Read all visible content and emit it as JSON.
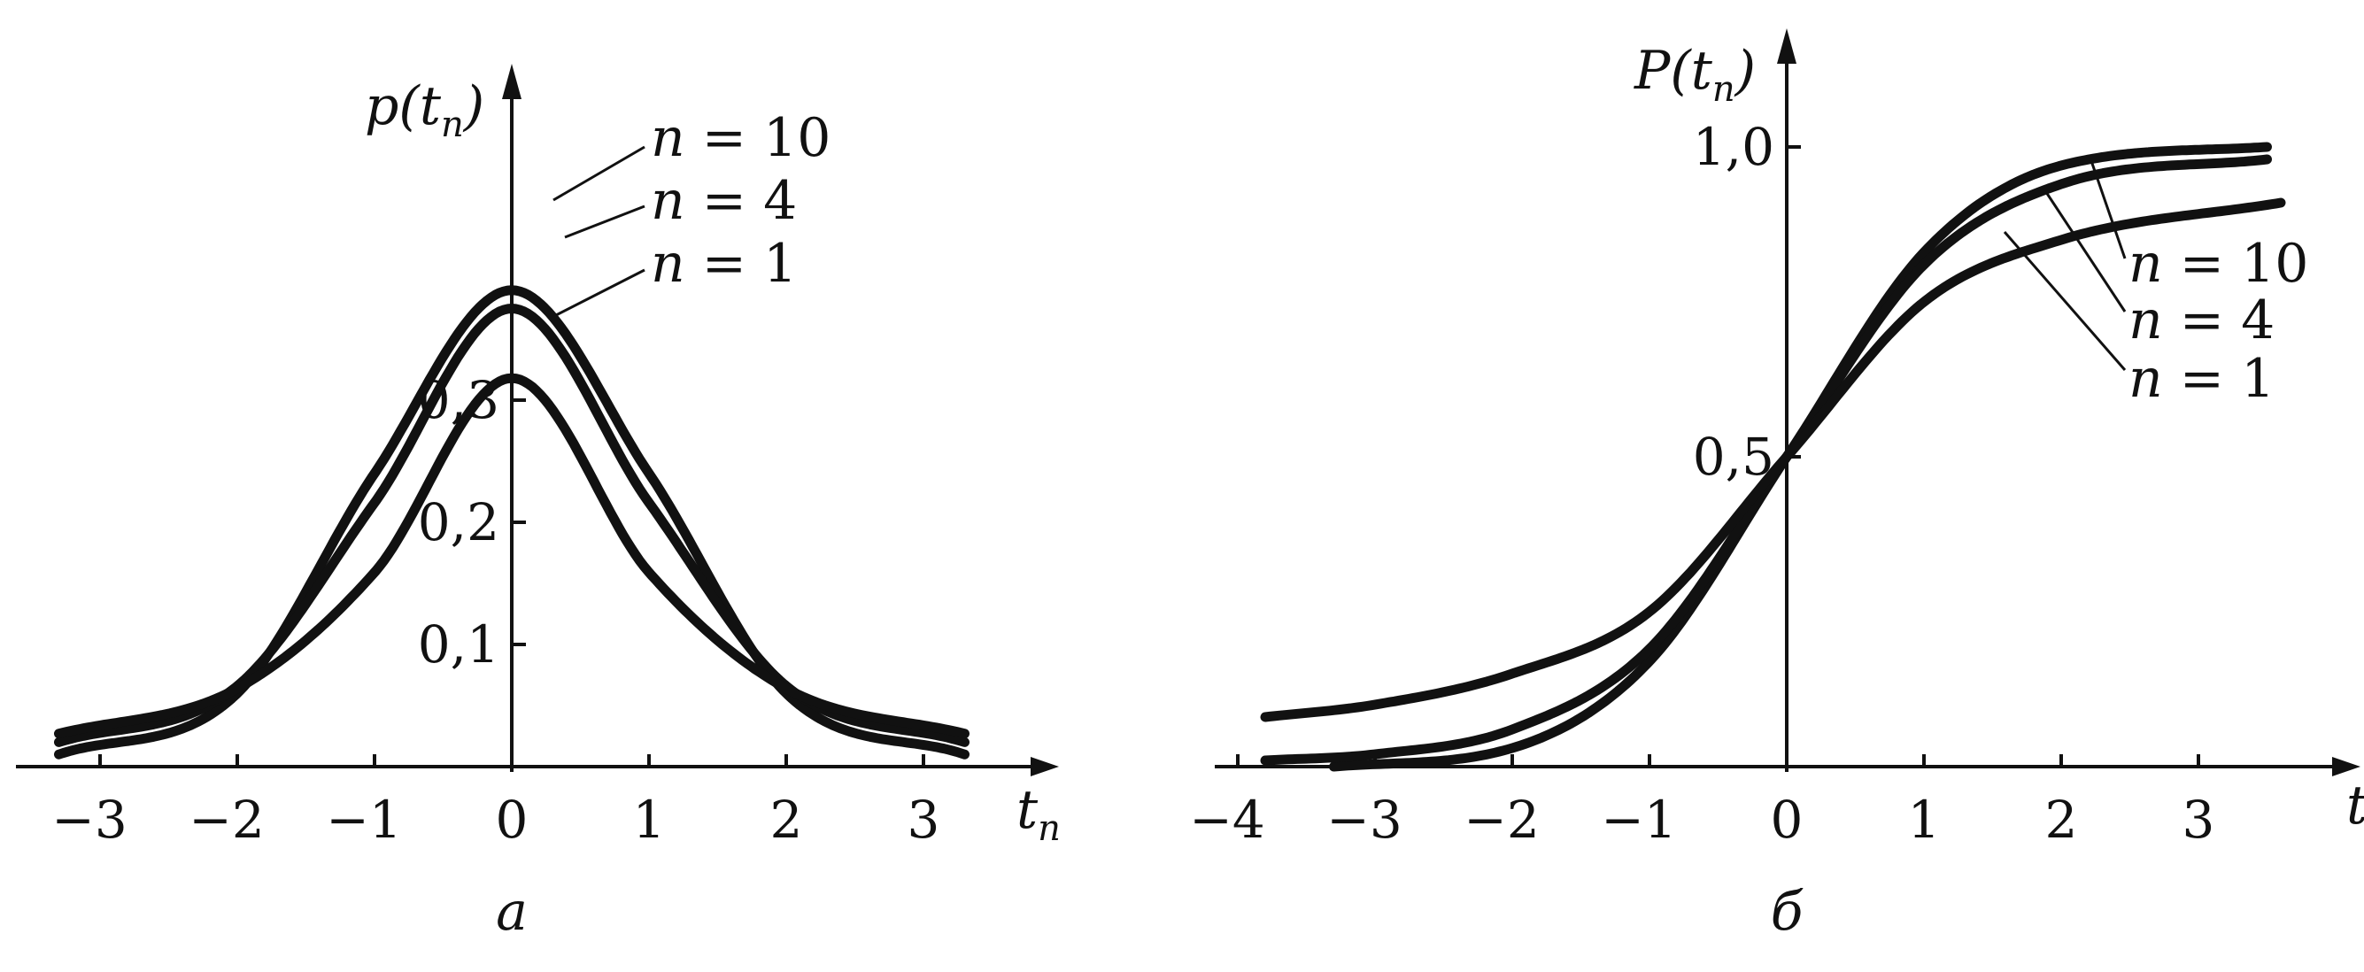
{
  "chart_data": [
    {
      "type": "line",
      "panel_label": "a",
      "y_axis_label": {
        "main": "p(t",
        "sub": "n",
        "close": ")"
      },
      "x_axis_label": {
        "main": "t",
        "sub": "n"
      },
      "x_ticks": [
        -3,
        -2,
        -1,
        0,
        1,
        2,
        3
      ],
      "x_tick_labels": [
        "−3",
        "−2",
        "−1",
        "0",
        "1",
        "2",
        "3"
      ],
      "y_ticks": [
        0.1,
        0.2,
        0.3
      ],
      "y_tick_labels": [
        "0,1",
        "0,2",
        "0,3"
      ],
      "xlim": [
        -3.6,
        3.9
      ],
      "ylim": [
        0,
        0.45
      ],
      "grid": false,
      "series": [
        {
          "name": "n = 10",
          "x": [
            -3.3,
            -2,
            -1,
            0,
            1,
            2,
            3.3
          ],
          "y": [
            0.01,
            0.06,
            0.24,
            0.39,
            0.24,
            0.06,
            0.01
          ]
        },
        {
          "name": "n = 4",
          "x": [
            -3.3,
            -2,
            -1,
            0,
            1,
            2,
            3.3
          ],
          "y": [
            0.02,
            0.066,
            0.216,
            0.375,
            0.216,
            0.066,
            0.02
          ]
        },
        {
          "name": "n = 1",
          "x": [
            -3.3,
            -2,
            -1,
            0,
            1,
            2,
            3.3
          ],
          "y": [
            0.027,
            0.064,
            0.159,
            0.318,
            0.159,
            0.064,
            0.027
          ]
        }
      ]
    },
    {
      "type": "line",
      "panel_label": "б",
      "y_axis_label": {
        "main": "P(t",
        "sub": "n",
        "close": ")"
      },
      "x_axis_label": {
        "main": "t",
        "sub": ""
      },
      "x_ticks": [
        -4,
        -3,
        -2,
        -1,
        0,
        1,
        2,
        3
      ],
      "x_tick_labels": [
        "−4",
        "−3",
        "−2",
        "−1",
        "0",
        "1",
        "2",
        "3"
      ],
      "y_ticks": [
        0.5,
        1.0
      ],
      "y_tick_labels": [
        "0,5",
        "1,0"
      ],
      "xlim": [
        -4.2,
        4.2
      ],
      "ylim": [
        0,
        1.1
      ],
      "grid": false,
      "series": [
        {
          "name": "n = 10",
          "x": [
            -3.3,
            -2,
            -1,
            0,
            1,
            2,
            3.5
          ],
          "y": [
            0.0,
            0.03,
            0.17,
            0.5,
            0.83,
            0.97,
            1.0
          ]
        },
        {
          "name": "n = 4",
          "x": [
            -3.8,
            -3,
            -2,
            -1,
            0,
            1,
            2,
            3.5
          ],
          "y": [
            0.01,
            0.02,
            0.06,
            0.19,
            0.5,
            0.81,
            0.94,
            0.98
          ]
        },
        {
          "name": "n = 1",
          "x": [
            -3.8,
            -3,
            -2,
            -1,
            0,
            1,
            2,
            3.6
          ],
          "y": [
            0.08,
            0.1,
            0.15,
            0.25,
            0.5,
            0.75,
            0.85,
            0.91
          ]
        }
      ]
    }
  ]
}
